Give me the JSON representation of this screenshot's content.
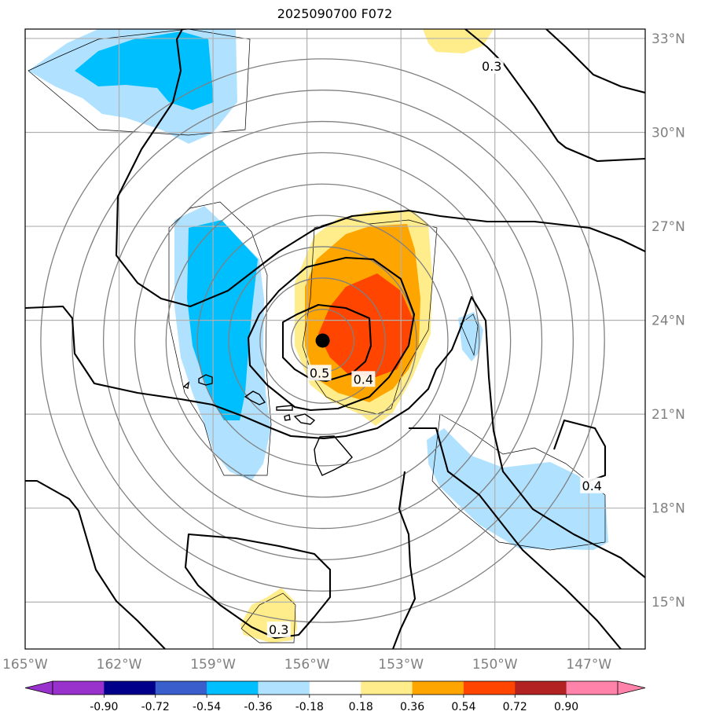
{
  "title": "2025090700 F072",
  "colors": {
    "frame": "#000000",
    "grid": "#b0b0b0",
    "range_rings": "#808080",
    "contour": "#000000",
    "tick_labels": "#808080"
  },
  "axes": {
    "lon_range": [
      -165.0,
      -145.2
    ],
    "lat_range": [
      13.5,
      33.3
    ],
    "lon_ticks": [
      {
        "value": -165,
        "label": "165°W"
      },
      {
        "value": -162,
        "label": "162°W"
      },
      {
        "value": -159,
        "label": "159°W"
      },
      {
        "value": -156,
        "label": "156°W"
      },
      {
        "value": -153,
        "label": "153°W"
      },
      {
        "value": -150,
        "label": "150°W"
      },
      {
        "value": -147,
        "label": "147°W"
      }
    ],
    "lat_ticks": [
      {
        "value": 33,
        "label": "33°N"
      },
      {
        "value": 30,
        "label": "30°N"
      },
      {
        "value": 27,
        "label": "27°N"
      },
      {
        "value": 24,
        "label": "24°N"
      },
      {
        "value": 21,
        "label": "21°N"
      },
      {
        "value": 18,
        "label": "18°N"
      },
      {
        "value": 15,
        "label": "15°N"
      }
    ]
  },
  "center_marker": {
    "lon": -155.5,
    "lat": 23.35
  },
  "range_rings_deg": [
    1,
    2,
    3,
    4,
    5,
    6,
    7,
    8,
    9
  ],
  "contour_labels": [
    {
      "text": "0.5",
      "lon": -155.6,
      "lat": 22.3
    },
    {
      "text": "0.4",
      "lon": -154.2,
      "lat": 22.1
    },
    {
      "text": "0.3",
      "lon": -150.1,
      "lat": 32.1
    },
    {
      "text": "0.4",
      "lon": -146.9,
      "lat": 18.7
    },
    {
      "text": "0.3",
      "lon": -156.9,
      "lat": 14.1
    }
  ],
  "colorbar": {
    "bins": [
      {
        "color": "#9932cc",
        "label": "-0.90"
      },
      {
        "color": "#00008b",
        "label": "-0.72"
      },
      {
        "color": "#3a5fcd",
        "label": "-0.54"
      },
      {
        "color": "#00bfff",
        "label": "-0.36"
      },
      {
        "color": "#b0e2ff",
        "label": "-0.18"
      },
      {
        "color": "#ffffff",
        "label": "0.18"
      },
      {
        "color": "#ffec8b",
        "label": "0.36"
      },
      {
        "color": "#ffa500",
        "label": "0.54"
      },
      {
        "color": "#ff4500",
        "label": "0.72"
      },
      {
        "color": "#b22222",
        "label": "0.90"
      },
      {
        "color": "#ff82ab",
        "label": ""
      }
    ]
  }
}
